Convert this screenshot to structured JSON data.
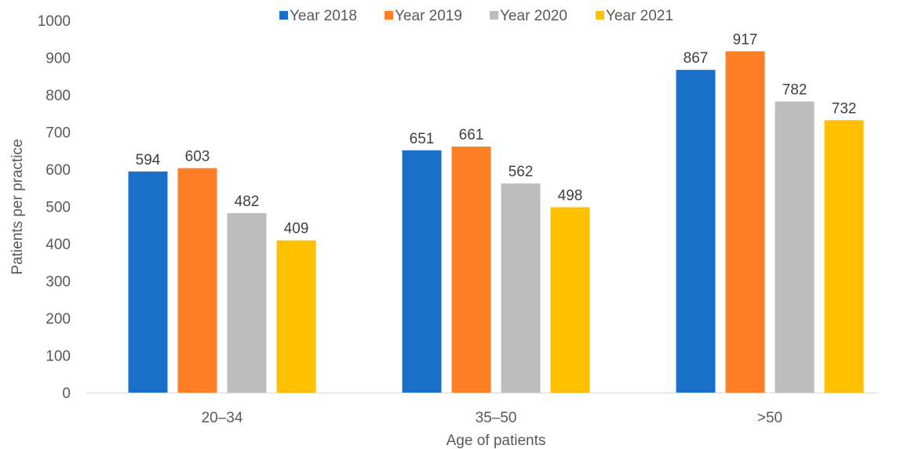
{
  "chart_data": {
    "type": "bar",
    "xlabel": "Age of patients",
    "ylabel": "Patients per practice",
    "ylim": [
      0,
      1000
    ],
    "yticks": [
      0,
      100,
      200,
      300,
      400,
      500,
      600,
      700,
      800,
      900,
      1000
    ],
    "categories": [
      "20–34",
      "35–50",
      ">50"
    ],
    "series": [
      {
        "name": "Year 2018",
        "color": "#1A70C8",
        "values": [
          594,
          651,
          867
        ]
      },
      {
        "name": "Year 2019",
        "color": "#FF7F27",
        "values": [
          603,
          661,
          917
        ]
      },
      {
        "name": "Year 2020",
        "color": "#BDBDBD",
        "values": [
          482,
          562,
          782
        ]
      },
      {
        "name": "Year 2021",
        "color": "#FFC000",
        "values": [
          409,
          498,
          732
        ]
      }
    ],
    "legend_position": "top",
    "grid": false,
    "data_labels": true
  }
}
